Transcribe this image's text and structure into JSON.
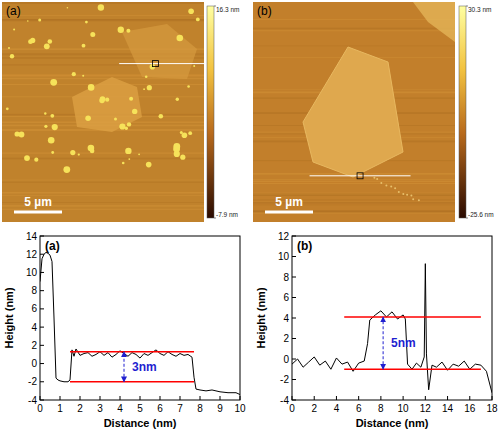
{
  "chart_data": [
    {
      "type": "line",
      "title": "(a)",
      "x_label": "Distance (nm)",
      "y_label": "Height (nm)",
      "color": "#000000",
      "x": [
        0,
        0.1,
        0.2,
        0.3,
        0.4,
        0.5,
        0.6,
        0.7,
        0.8,
        0.9,
        1.0,
        1.2,
        1.4,
        1.5,
        1.6,
        1.7,
        1.8,
        2.0,
        2.2,
        2.4,
        2.6,
        2.8,
        3.0,
        3.2,
        3.4,
        3.6,
        3.8,
        4.0,
        4.2,
        4.4,
        4.6,
        4.8,
        5.0,
        5.2,
        5.4,
        5.6,
        5.8,
        6.0,
        6.2,
        6.4,
        6.6,
        6.8,
        7.0,
        7.2,
        7.4,
        7.6,
        7.7,
        7.8,
        8.0,
        8.3,
        8.6,
        9.0,
        9.4,
        9.8,
        10
      ],
      "values": [
        9,
        11.5,
        12,
        12.2,
        12.1,
        11.9,
        11.2,
        5,
        -1.6,
        -1.8,
        -1.9,
        -2,
        -2,
        -1.8,
        1.5,
        0.8,
        1.6,
        0.9,
        1.1,
        1.2,
        0.8,
        1.0,
        1.3,
        0.9,
        1.2,
        0.7,
        1.0,
        1.4,
        1.1,
        0.8,
        1.2,
        1.0,
        0.6,
        1.1,
        0.9,
        1.2,
        1.5,
        1.1,
        0.9,
        1.3,
        1.0,
        0.8,
        1.1,
        0.9,
        1.0,
        0.7,
        -1.5,
        -2.8,
        -2.9,
        -3.0,
        -2.9,
        -3.1,
        -3.2,
        -3.2,
        -3.4
      ],
      "xlim": [
        0,
        10
      ],
      "xticks": [
        0,
        1,
        2,
        3,
        4,
        5,
        6,
        7,
        8,
        9,
        10
      ],
      "ylim": [
        -4,
        14
      ],
      "yticks": [
        -4,
        -2,
        0,
        2,
        4,
        6,
        8,
        10,
        12,
        14
      ],
      "reference_lines": [
        {
          "y": 1.3,
          "x": [
            1.5,
            7.7
          ],
          "color": "#ff0000"
        },
        {
          "y": -2,
          "x": [
            1.5,
            7.7
          ],
          "color": "#ff0000"
        }
      ],
      "annotations": [
        {
          "text": "3nm",
          "x": 4.2,
          "y": [
            -2,
            1.3
          ],
          "color": "#1f1fd0"
        }
      ]
    },
    {
      "type": "line",
      "title": "(b)",
      "x_label": "Distance (nm)",
      "y_label": "Height (nm)",
      "color": "#000000",
      "x": [
        0,
        0.5,
        1,
        1.5,
        2,
        2.5,
        3,
        3.5,
        4,
        4.5,
        5,
        5.5,
        6,
        6.5,
        6.8,
        7.0,
        7.5,
        8,
        8.5,
        9,
        9.5,
        10,
        10.2,
        10.4,
        10.8,
        11.2,
        11.6,
        11.9,
        12.0,
        12.1,
        12.3,
        12.6,
        13,
        13.5,
        14,
        14.5,
        15,
        15.5,
        16,
        16.5,
        17,
        17.5,
        18
      ],
      "values": [
        -0.5,
        0,
        -0.8,
        -0.3,
        0.2,
        -0.6,
        -0.2,
        -1.0,
        0.1,
        -0.5,
        -0.3,
        -1.2,
        -0.4,
        -0.2,
        1.5,
        3.8,
        4.3,
        4.7,
        4.1,
        4.6,
        3.9,
        4.3,
        3.9,
        -0.5,
        -1.0,
        -0.4,
        -0.8,
        0.2,
        9.3,
        0.5,
        -3.0,
        -0.6,
        -0.8,
        -0.3,
        -1.1,
        -0.5,
        -0.7,
        -0.2,
        -1.0,
        -0.5,
        -0.6,
        -1.2,
        -3.3
      ],
      "xlim": [
        0,
        18
      ],
      "xticks": [
        0,
        2,
        4,
        6,
        8,
        10,
        12,
        14,
        16,
        18
      ],
      "ylim": [
        -4,
        12
      ],
      "yticks": [
        -4,
        -2,
        0,
        2,
        4,
        6,
        8,
        10,
        12
      ],
      "reference_lines": [
        {
          "y": 4.1,
          "x": [
            4.7,
            17
          ],
          "color": "#ff0000"
        },
        {
          "y": -1,
          "x": [
            4.7,
            17
          ],
          "color": "#ff0000"
        }
      ],
      "annotations": [
        {
          "text": "5nm",
          "x": 8.2,
          "y": [
            -1,
            4.1
          ],
          "color": "#1f1fd0"
        }
      ]
    }
  ],
  "afm_images": [
    {
      "label": "(a)",
      "scale_bar": "5 µm",
      "colorbar": {
        "range": [
          -7.9,
          16.3
        ],
        "ticks": [
          {
            "value": 16.3,
            "label": "16.3 nm"
          },
          {
            "value": -7.9,
            "label": "-7.9 nm"
          }
        ]
      }
    },
    {
      "label": "(b)",
      "scale_bar": "5 µm",
      "colorbar": {
        "range": [
          -25.6,
          30.3
        ],
        "ticks": [
          {
            "value": 30.3,
            "label": "30.3 nm"
          },
          {
            "value": -25.6,
            "label": "-25.6 nm"
          }
        ]
      }
    }
  ]
}
